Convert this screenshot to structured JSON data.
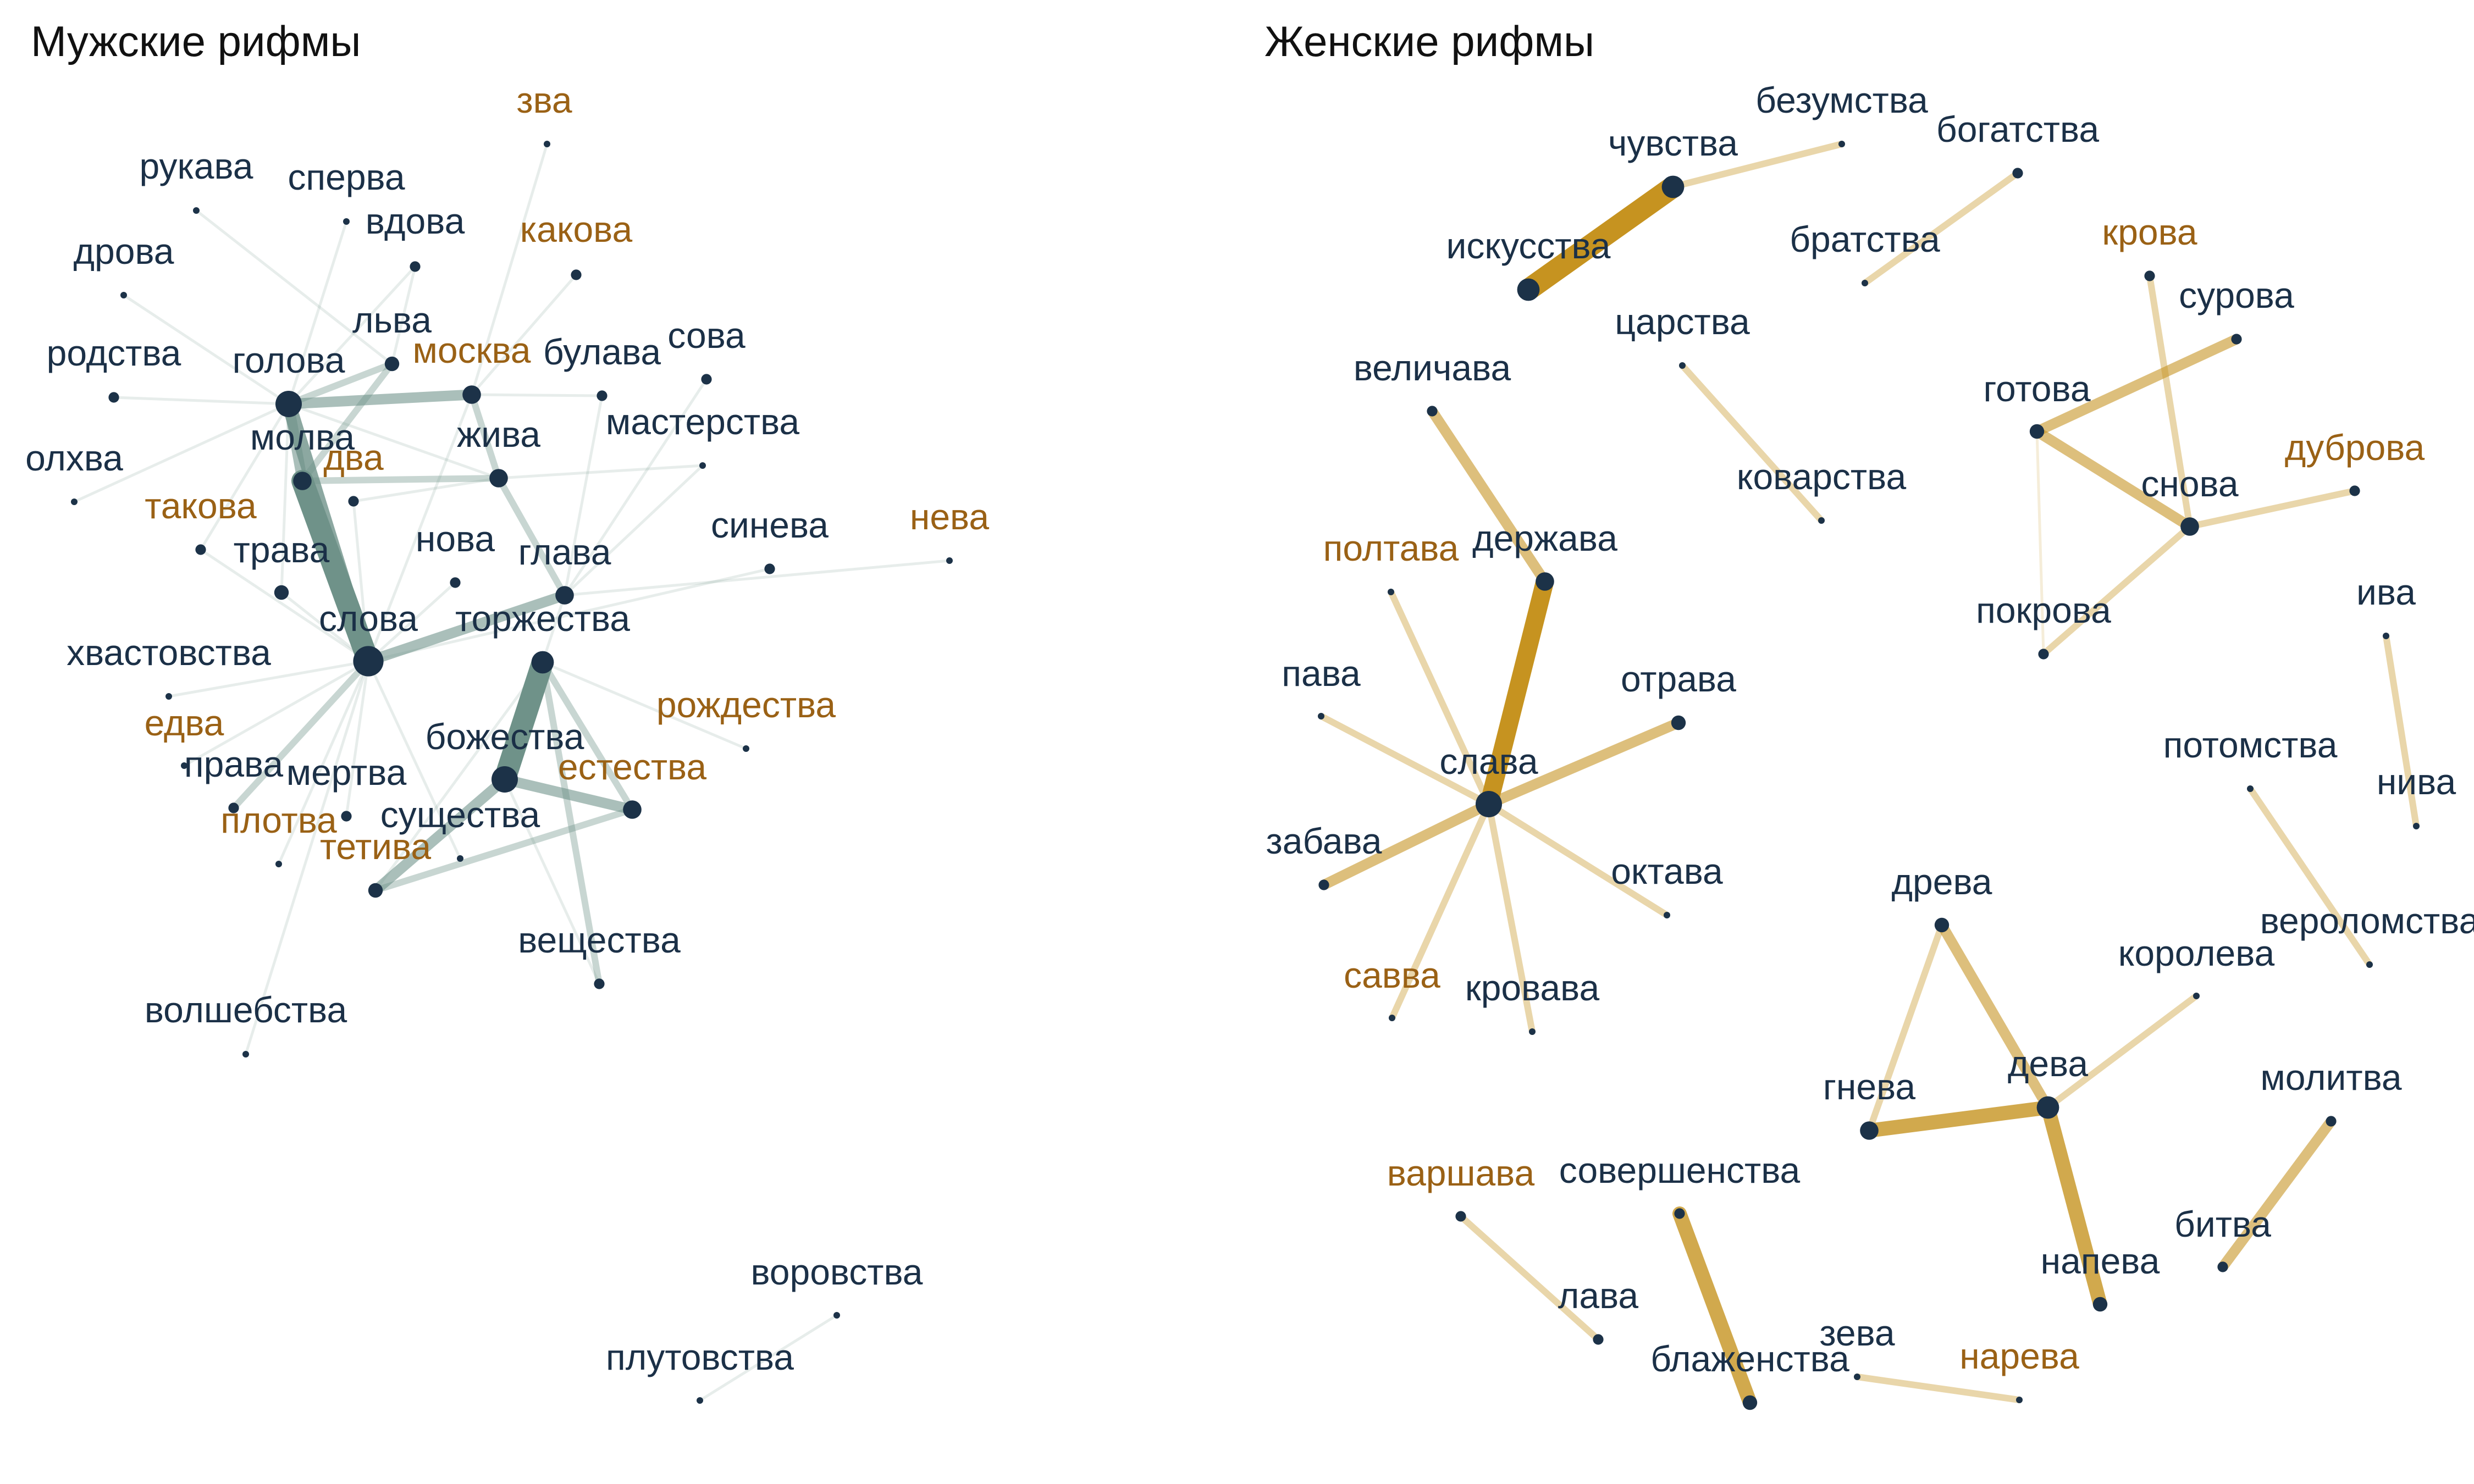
{
  "colors": {
    "label_normal": "#1b3047",
    "label_highlight": "#9a6115",
    "node": "#1c3248",
    "edge_masc": "#6f9289",
    "edge_fem": "#c69320"
  },
  "panels": [
    {
      "id": "masc",
      "title": "Мужские рифмы",
      "edge_color": "#6f9289",
      "nodes": [
        {
          "id": "зва",
          "highlight": true,
          "size": 1
        },
        {
          "id": "рукава",
          "highlight": false,
          "size": 1
        },
        {
          "id": "сперва",
          "highlight": false,
          "size": 1
        },
        {
          "id": "вдова",
          "highlight": false,
          "size": 2
        },
        {
          "id": "какова",
          "highlight": true,
          "size": 2
        },
        {
          "id": "дрова",
          "highlight": false,
          "size": 1
        },
        {
          "id": "льва",
          "highlight": false,
          "size": 3
        },
        {
          "id": "родства",
          "highlight": false,
          "size": 2
        },
        {
          "id": "голова",
          "highlight": false,
          "size": 6
        },
        {
          "id": "москва",
          "highlight": true,
          "size": 4
        },
        {
          "id": "булава",
          "highlight": false,
          "size": 2
        },
        {
          "id": "сова",
          "highlight": false,
          "size": 2
        },
        {
          "id": "мастерства",
          "highlight": false,
          "size": 1
        },
        {
          "id": "молва",
          "highlight": false,
          "size": 4
        },
        {
          "id": "два",
          "highlight": true,
          "size": 2
        },
        {
          "id": "жива",
          "highlight": false,
          "size": 4
        },
        {
          "id": "олхва",
          "highlight": false,
          "size": 1
        },
        {
          "id": "такова",
          "highlight": true,
          "size": 2
        },
        {
          "id": "трава",
          "highlight": false,
          "size": 3
        },
        {
          "id": "нова",
          "highlight": false,
          "size": 2
        },
        {
          "id": "глава",
          "highlight": false,
          "size": 4
        },
        {
          "id": "синева",
          "highlight": false,
          "size": 2
        },
        {
          "id": "нева",
          "highlight": true,
          "size": 1
        },
        {
          "id": "слова",
          "highlight": false,
          "size": 7
        },
        {
          "id": "торжества",
          "highlight": false,
          "size": 5
        },
        {
          "id": "хвастовства",
          "highlight": false,
          "size": 1
        },
        {
          "id": "рождества",
          "highlight": true,
          "size": 1
        },
        {
          "id": "едва",
          "highlight": true,
          "size": 1
        },
        {
          "id": "права",
          "highlight": false,
          "size": 2
        },
        {
          "id": "божества",
          "highlight": false,
          "size": 6
        },
        {
          "id": "мертва",
          "highlight": false,
          "size": 2
        },
        {
          "id": "естества",
          "highlight": true,
          "size": 4
        },
        {
          "id": "плотва",
          "highlight": true,
          "size": 1
        },
        {
          "id": "существа",
          "highlight": false,
          "size": 1
        },
        {
          "id": "тетива",
          "highlight": true,
          "size": 3
        },
        {
          "id": "вещества",
          "highlight": false,
          "size": 2
        },
        {
          "id": "волшебства",
          "highlight": false,
          "size": 1
        },
        {
          "id": "воровства",
          "highlight": false,
          "size": 1
        },
        {
          "id": "плутовства",
          "highlight": false,
          "size": 1
        }
      ],
      "edges": [
        {
          "source": "молва",
          "target": "слова",
          "weight": 6
        },
        {
          "source": "божества",
          "target": "торжества",
          "weight": 6
        },
        {
          "source": "голова",
          "target": "слова",
          "weight": 4
        },
        {
          "source": "голова",
          "target": "москва",
          "weight": 3
        },
        {
          "source": "голова",
          "target": "молва",
          "weight": 3
        },
        {
          "source": "слова",
          "target": "глава",
          "weight": 3
        },
        {
          "source": "божества",
          "target": "естества",
          "weight": 3
        },
        {
          "source": "божества",
          "target": "тетива",
          "weight": 3
        },
        {
          "source": "торжества",
          "target": "естества",
          "weight": 2
        },
        {
          "source": "тетива",
          "target": "естества",
          "weight": 2
        },
        {
          "source": "москва",
          "target": "жива",
          "weight": 2
        },
        {
          "source": "молва",
          "target": "льва",
          "weight": 2
        },
        {
          "source": "жива",
          "target": "глава",
          "weight": 2
        },
        {
          "source": "голова",
          "target": "льва",
          "weight": 2
        },
        {
          "source": "слова",
          "target": "права",
          "weight": 2
        },
        {
          "source": "молва",
          "target": "жива",
          "weight": 2
        },
        {
          "source": "торжества",
          "target": "вещества",
          "weight": 2
        },
        {
          "source": "голова",
          "target": "такова",
          "weight": 1
        },
        {
          "source": "голова",
          "target": "трава",
          "weight": 1
        },
        {
          "source": "голова",
          "target": "жива",
          "weight": 1
        },
        {
          "source": "голова",
          "target": "родства",
          "weight": 1
        },
        {
          "source": "голова",
          "target": "олхва",
          "weight": 1
        },
        {
          "source": "голова",
          "target": "дрова",
          "weight": 1
        },
        {
          "source": "голова",
          "target": "вдова",
          "weight": 1
        },
        {
          "source": "голова",
          "target": "сперва",
          "weight": 1
        },
        {
          "source": "слова",
          "target": "москва",
          "weight": 1
        },
        {
          "source": "слова",
          "target": "трава",
          "weight": 1
        },
        {
          "source": "слова",
          "target": "два",
          "weight": 1
        },
        {
          "source": "слова",
          "target": "хвастовства",
          "weight": 1
        },
        {
          "source": "слова",
          "target": "едва",
          "weight": 1
        },
        {
          "source": "слова",
          "target": "мертва",
          "weight": 1
        },
        {
          "source": "слова",
          "target": "плотва",
          "weight": 1
        },
        {
          "source": "слова",
          "target": "существа",
          "weight": 1
        },
        {
          "source": "слова",
          "target": "волшебства",
          "weight": 1
        },
        {
          "source": "слова",
          "target": "нова",
          "weight": 1
        },
        {
          "source": "слова",
          "target": "синева",
          "weight": 1
        },
        {
          "source": "слова",
          "target": "такова",
          "weight": 1
        },
        {
          "source": "глава",
          "target": "нева",
          "weight": 1
        },
        {
          "source": "глава",
          "target": "булава",
          "weight": 1
        },
        {
          "source": "глава",
          "target": "мастерства",
          "weight": 1
        },
        {
          "source": "глава",
          "target": "торжества",
          "weight": 1
        },
        {
          "source": "глава",
          "target": "сова",
          "weight": 1
        },
        {
          "source": "торжества",
          "target": "рождества",
          "weight": 1
        },
        {
          "source": "торжества",
          "target": "тетива",
          "weight": 1
        },
        {
          "source": "божества",
          "target": "вещества",
          "weight": 1
        },
        {
          "source": "москва",
          "target": "зва",
          "weight": 1
        },
        {
          "source": "москва",
          "target": "какова",
          "weight": 1
        },
        {
          "source": "москва",
          "target": "булава",
          "weight": 1
        },
        {
          "source": "льва",
          "target": "рукава",
          "weight": 1
        },
        {
          "source": "льва",
          "target": "вдова",
          "weight": 1
        },
        {
          "source": "жива",
          "target": "мастерства",
          "weight": 1
        },
        {
          "source": "жива",
          "target": "два",
          "weight": 1
        },
        {
          "source": "воровства",
          "target": "плутовства",
          "weight": 1
        }
      ]
    },
    {
      "id": "fem",
      "title": "Женские рифмы",
      "edge_color": "#c69320",
      "nodes": [
        {
          "id": "безумства",
          "highlight": false,
          "size": 1
        },
        {
          "id": "чувства",
          "highlight": false,
          "size": 5
        },
        {
          "id": "богатства",
          "highlight": false,
          "size": 2
        },
        {
          "id": "искусства",
          "highlight": false,
          "size": 5
        },
        {
          "id": "братства",
          "highlight": false,
          "size": 1
        },
        {
          "id": "крова",
          "highlight": true,
          "size": 2
        },
        {
          "id": "сурова",
          "highlight": false,
          "size": 2
        },
        {
          "id": "царства",
          "highlight": false,
          "size": 1
        },
        {
          "id": "величава",
          "highlight": false,
          "size": 2
        },
        {
          "id": "готова",
          "highlight": false,
          "size": 3
        },
        {
          "id": "коварства",
          "highlight": false,
          "size": 1
        },
        {
          "id": "дуброва",
          "highlight": true,
          "size": 2
        },
        {
          "id": "снова",
          "highlight": false,
          "size": 4
        },
        {
          "id": "полтава",
          "highlight": true,
          "size": 1
        },
        {
          "id": "держава",
          "highlight": false,
          "size": 4
        },
        {
          "id": "покрова",
          "highlight": false,
          "size": 2
        },
        {
          "id": "ива",
          "highlight": false,
          "size": 1
        },
        {
          "id": "пава",
          "highlight": false,
          "size": 1
        },
        {
          "id": "отрава",
          "highlight": false,
          "size": 3
        },
        {
          "id": "слава",
          "highlight": false,
          "size": 6
        },
        {
          "id": "потомства",
          "highlight": false,
          "size": 1
        },
        {
          "id": "нива",
          "highlight": false,
          "size": 1
        },
        {
          "id": "забава",
          "highlight": false,
          "size": 2
        },
        {
          "id": "октава",
          "highlight": false,
          "size": 1
        },
        {
          "id": "древа",
          "highlight": false,
          "size": 3
        },
        {
          "id": "вероломства",
          "highlight": false,
          "size": 1
        },
        {
          "id": "савва",
          "highlight": true,
          "size": 1
        },
        {
          "id": "кровава",
          "highlight": false,
          "size": 1
        },
        {
          "id": "королева",
          "highlight": false,
          "size": 1
        },
        {
          "id": "дева",
          "highlight": false,
          "size": 5
        },
        {
          "id": "гнева",
          "highlight": false,
          "size": 4
        },
        {
          "id": "молитва",
          "highlight": false,
          "size": 2
        },
        {
          "id": "варшава",
          "highlight": true,
          "size": 2
        },
        {
          "id": "совершенства",
          "highlight": false,
          "size": 2
        },
        {
          "id": "битва",
          "highlight": false,
          "size": 2
        },
        {
          "id": "напева",
          "highlight": false,
          "size": 3
        },
        {
          "id": "лава",
          "highlight": false,
          "size": 2
        },
        {
          "id": "зева",
          "highlight": false,
          "size": 1
        },
        {
          "id": "блаженства",
          "highlight": false,
          "size": 3
        },
        {
          "id": "нарева",
          "highlight": true,
          "size": 1
        }
      ],
      "edges": [
        {
          "source": "чувства",
          "target": "искусства",
          "weight": 6
        },
        {
          "source": "слава",
          "target": "держава",
          "weight": 5
        },
        {
          "source": "гнева",
          "target": "дева",
          "weight": 4
        },
        {
          "source": "совершенства",
          "target": "блаженства",
          "weight": 4
        },
        {
          "source": "дева",
          "target": "напева",
          "weight": 4
        },
        {
          "source": "слава",
          "target": "отрава",
          "weight": 3
        },
        {
          "source": "слава",
          "target": "забава",
          "weight": 3
        },
        {
          "source": "древа",
          "target": "дева",
          "weight": 3
        },
        {
          "source": "готова",
          "target": "снова",
          "weight": 3
        },
        {
          "source": "готова",
          "target": "сурова",
          "weight": 3
        },
        {
          "source": "величава",
          "target": "держава",
          "weight": 3
        },
        {
          "source": "молитва",
          "target": "битва",
          "weight": 3
        },
        {
          "source": "чувства",
          "target": "безумства",
          "weight": 2
        },
        {
          "source": "снова",
          "target": "покрова",
          "weight": 2
        },
        {
          "source": "снова",
          "target": "дуброва",
          "weight": 2
        },
        {
          "source": "крова",
          "target": "снова",
          "weight": 2
        },
        {
          "source": "гнева",
          "target": "древа",
          "weight": 2
        },
        {
          "source": "слава",
          "target": "полтава",
          "weight": 2
        },
        {
          "source": "слава",
          "target": "пава",
          "weight": 2
        },
        {
          "source": "слава",
          "target": "октава",
          "weight": 2
        },
        {
          "source": "слава",
          "target": "кровава",
          "weight": 2
        },
        {
          "source": "слава",
          "target": "савва",
          "weight": 2
        },
        {
          "source": "царства",
          "target": "коварства",
          "weight": 2
        },
        {
          "source": "богатства",
          "target": "братства",
          "weight": 2
        },
        {
          "source": "ива",
          "target": "нива",
          "weight": 2
        },
        {
          "source": "потомства",
          "target": "вероломства",
          "weight": 2
        },
        {
          "source": "варшава",
          "target": "лава",
          "weight": 2
        },
        {
          "source": "зева",
          "target": "нарева",
          "weight": 2
        },
        {
          "source": "готова",
          "target": "покрова",
          "weight": 1
        },
        {
          "source": "королева",
          "target": "дева",
          "weight": 2
        }
      ]
    }
  ]
}
